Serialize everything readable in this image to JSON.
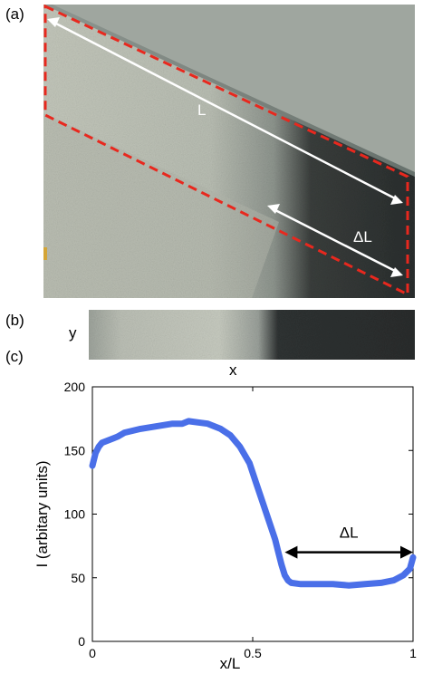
{
  "panels": {
    "a": {
      "label": "(a)",
      "length_label": "L",
      "delta_label": "ΔL"
    },
    "b": {
      "label": "(b)",
      "y_label": "y",
      "x_label": "x"
    },
    "c": {
      "label": "(c)"
    }
  },
  "colors": {
    "boundary": "#e8281e",
    "arrows": "#ffffff",
    "curve": "#4a6fe8",
    "delta_arrow": "#000000"
  },
  "chart_data": {
    "type": "line",
    "xlabel": "x/L",
    "ylabel": "I (arbitary units)",
    "xlim": [
      0,
      1
    ],
    "ylim": [
      0,
      200
    ],
    "x_ticks": [
      "0",
      "0.5",
      "1"
    ],
    "y_ticks": [
      "0",
      "50",
      "100",
      "150",
      "200"
    ],
    "grid": false,
    "annotation": {
      "text": "ΔL",
      "x_from": 0.6,
      "x_to": 1.0,
      "y": 70
    },
    "series": [
      {
        "x": [
          0.0,
          0.01,
          0.02,
          0.03,
          0.05,
          0.08,
          0.1,
          0.15,
          0.2,
          0.25,
          0.28,
          0.3,
          0.33,
          0.36,
          0.4,
          0.43,
          0.46,
          0.49,
          0.51,
          0.53,
          0.55,
          0.57,
          0.58,
          0.59,
          0.6,
          0.61,
          0.62,
          0.65,
          0.7,
          0.75,
          0.8,
          0.85,
          0.9,
          0.94,
          0.97,
          0.99,
          1.0
        ],
        "y": [
          138,
          148,
          153,
          156,
          158,
          161,
          164,
          167,
          169,
          171,
          171,
          173,
          172,
          171,
          167,
          162,
          153,
          140,
          125,
          110,
          95,
          80,
          70,
          60,
          52,
          48,
          46,
          45,
          45,
          45,
          44,
          45,
          46,
          48,
          52,
          57,
          66
        ]
      }
    ]
  }
}
